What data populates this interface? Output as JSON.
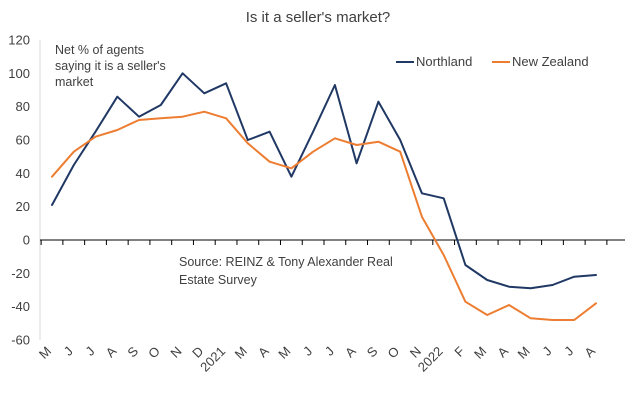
{
  "chart_data": {
    "type": "line",
    "title": "Is it a seller's market?",
    "annotation": [
      "Net % of agents",
      "saying it is a seller's",
      "market"
    ],
    "source": [
      "Source: REINZ & Tony Alexander Real",
      "Estate Survey"
    ],
    "xlabel": "",
    "ylabel": "",
    "ylim": [
      -60,
      120
    ],
    "yticks": [
      -60,
      -40,
      -20,
      0,
      20,
      40,
      60,
      80,
      100,
      120
    ],
    "x_tick_labels": [
      "M",
      "J",
      "J",
      "A",
      "S",
      "O",
      "N",
      "D",
      "2021",
      "M",
      "A",
      "M",
      "J",
      "J",
      "A",
      "S",
      "O",
      "N",
      "2022",
      "F",
      "M",
      "A",
      "M",
      "J",
      "J",
      "A"
    ],
    "grid": false,
    "legend_position": "top-right",
    "series": [
      {
        "name": "Northland",
        "color": "#203864",
        "values": [
          21,
          45,
          65,
          86,
          74,
          81,
          100,
          88,
          94,
          60,
          65,
          38,
          65,
          93,
          46,
          83,
          60,
          28,
          25,
          -15,
          -24,
          -28,
          -29,
          -27,
          -22,
          -21
        ]
      },
      {
        "name": "New Zealand",
        "color": "#ED7D31",
        "values": [
          38,
          53,
          62,
          66,
          72,
          73,
          74,
          77,
          73,
          58,
          47,
          43,
          53,
          61,
          57,
          59,
          53,
          14,
          -9,
          -37,
          -45,
          -39,
          -47,
          -48,
          -48,
          -38
        ]
      }
    ]
  }
}
